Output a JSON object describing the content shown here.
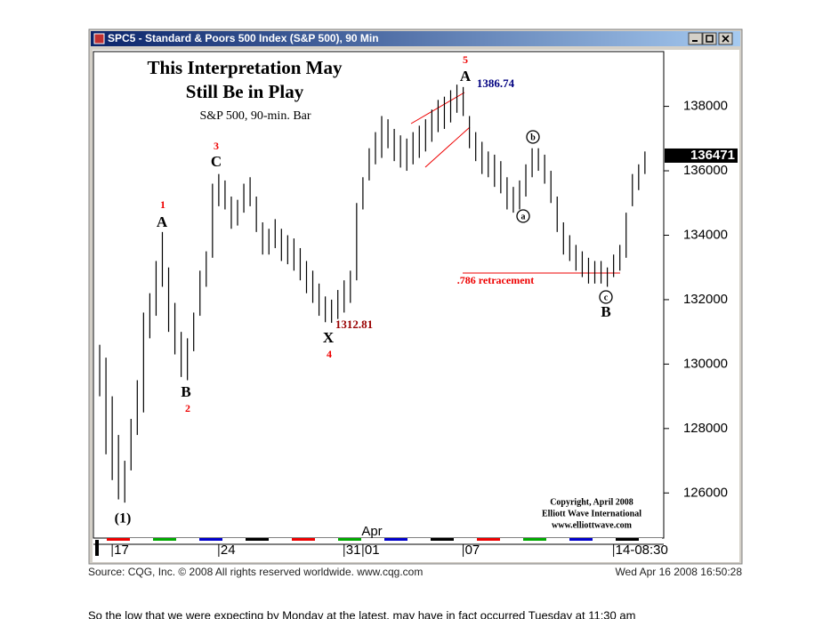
{
  "window": {
    "title": "SPC5 - Standard & Poors 500 Index (S&P 500), 90 Min",
    "source": "Source: CQG, Inc. © 2008 All rights reserved worldwide. www.cqg.com",
    "timestamp": "Wed Apr 16 2008 16:50:28"
  },
  "body_text": "So the low that we were expecting by Monday at the latest, may have in fact occurred Tuesday at 11:30 am",
  "chart_data": {
    "type": "ohlc",
    "title": [
      "This Interpretation May",
      "Still Be in Play"
    ],
    "subtitle": "S&P 500, 90-min. Bar",
    "annotations": {
      "w1": "1",
      "a1": "A",
      "b1": "B",
      "w2": "2",
      "w3": "3",
      "c1": "C",
      "x": "X",
      "w4": "4",
      "low_label": "1312.81",
      "w5": "5",
      "a2": "A",
      "high_label": "1386.74",
      "sub_b": "b",
      "sub_a": "a",
      "retracement": ".786 retracement",
      "sub_c": "c",
      "b2": "B",
      "wave1": "(1)"
    },
    "copyright": [
      "Copyright, April 2008",
      "Elliott Wave International",
      "www.elliottwave.com"
    ],
    "x_month_label": "Apr",
    "categories": [
      null,
      null,
      "17",
      null,
      null,
      null,
      null,
      null,
      null,
      null,
      null,
      null,
      null,
      null,
      null,
      null,
      null,
      null,
      null,
      "24",
      null,
      null,
      null,
      null,
      null,
      null,
      null,
      null,
      null,
      null,
      null,
      null,
      null,
      null,
      null,
      null,
      null,
      null,
      null,
      "31",
      null,
      null,
      "01",
      null,
      null,
      null,
      null,
      null,
      null,
      null,
      null,
      null,
      null,
      null,
      null,
      null,
      null,
      null,
      "07",
      null,
      null,
      null,
      null,
      null,
      null,
      null,
      null,
      null,
      null,
      null,
      null,
      null,
      null,
      null,
      null,
      null,
      null,
      null,
      null,
      null,
      null,
      null,
      "14-08:30",
      null,
      null,
      null,
      null,
      null
    ],
    "high": [
      130600,
      130200,
      129000,
      127800,
      127000,
      128300,
      129500,
      131600,
      132200,
      133200,
      134100,
      133000,
      131900,
      131000,
      130800,
      131600,
      132900,
      133500,
      135600,
      135900,
      135700,
      135200,
      135100,
      135600,
      135800,
      135200,
      134400,
      134200,
      134500,
      134200,
      134000,
      133900,
      133600,
      133200,
      132900,
      132500,
      132100,
      132000,
      132300,
      132600,
      132900,
      135000,
      135800,
      136700,
      137200,
      137700,
      137600,
      137300,
      137100,
      137000,
      137200,
      137400,
      137600,
      137900,
      138200,
      138300,
      138500,
      138674,
      138600,
      137700,
      137200,
      136900,
      136600,
      136500,
      136300,
      135800,
      135500,
      135700,
      136200,
      136700,
      136700,
      136500,
      136000,
      135200,
      134400,
      134000,
      133700,
      133500,
      133300,
      133200,
      133200,
      133000,
      133400,
      133700,
      134700,
      135900,
      136200,
      136600
    ],
    "low": [
      129000,
      127200,
      126400,
      125800,
      125700,
      126700,
      127800,
      128500,
      130800,
      131500,
      132400,
      131000,
      130300,
      129600,
      129500,
      130400,
      131500,
      132400,
      133300,
      134900,
      134800,
      134200,
      134300,
      134700,
      134900,
      134100,
      133400,
      133400,
      133600,
      133200,
      133100,
      132900,
      132600,
      132200,
      131900,
      131500,
      131300,
      131281,
      131400,
      131600,
      131900,
      132600,
      134800,
      135700,
      136200,
      136400,
      136700,
      136300,
      136100,
      136000,
      136200,
      136400,
      136600,
      136900,
      137200,
      137300,
      137500,
      137800,
      137700,
      136700,
      136300,
      135900,
      135800,
      135500,
      135300,
      134800,
      134700,
      134800,
      135200,
      135800,
      136000,
      135600,
      135000,
      134100,
      133400,
      133200,
      132900,
      132700,
      132500,
      132500,
      132500,
      132400,
      132700,
      132900,
      133300,
      134900,
      135400,
      135900
    ],
    "color": "#000000",
    "last_price": 136471,
    "ylim": [
      124600,
      139700
    ],
    "yticks": [
      126000,
      128000,
      130000,
      132000,
      134000,
      136000,
      138000
    ]
  }
}
